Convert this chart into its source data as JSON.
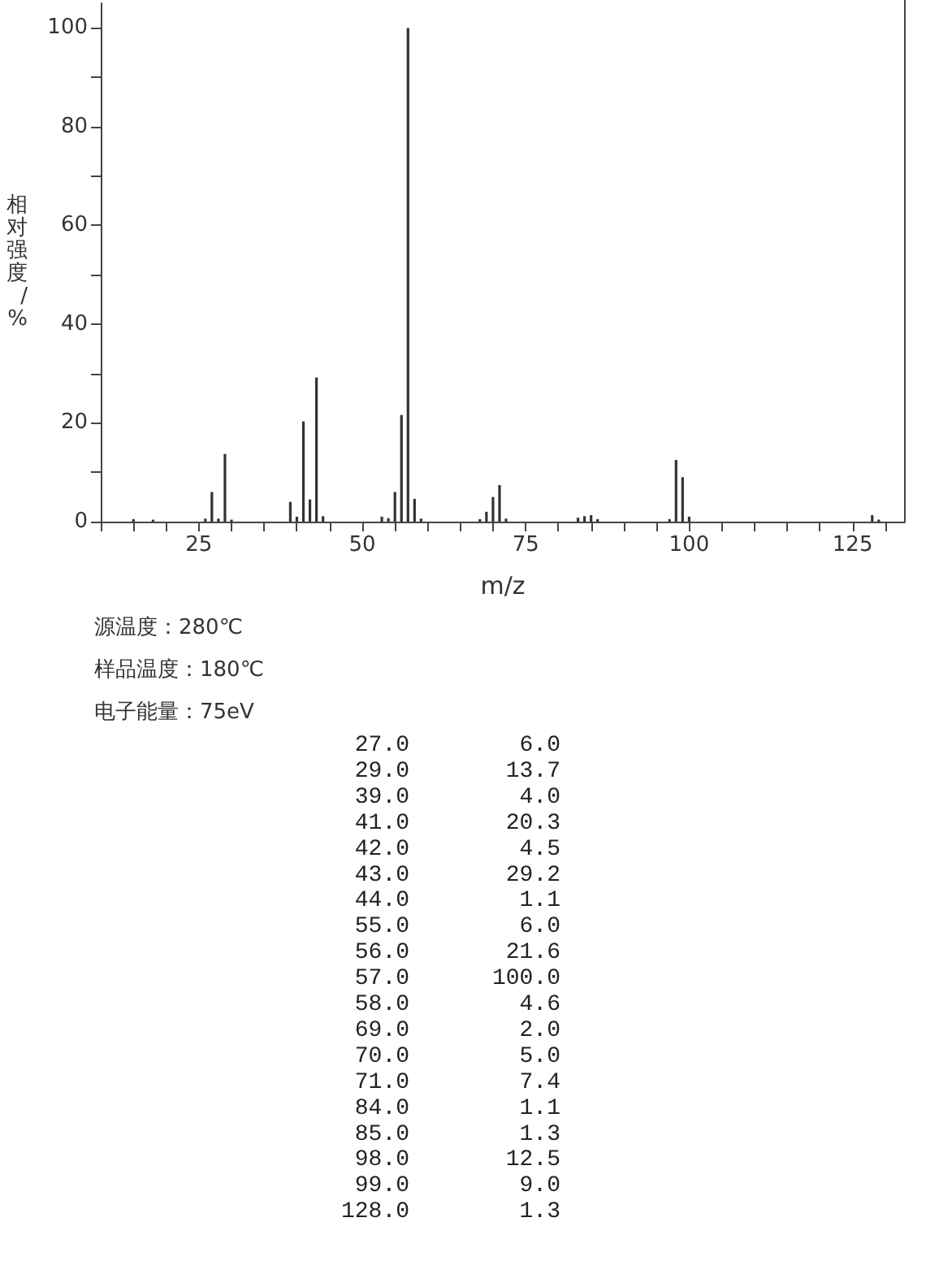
{
  "chart_data": [
    {
      "type": "bar",
      "xlabel": "m/z",
      "ylabel": "相对强度/%",
      "xlim": [
        10,
        133
      ],
      "ylim": [
        0,
        105
      ],
      "xticks": [
        {
          "value": 10,
          "label": null
        },
        {
          "value": 15,
          "label": null
        },
        {
          "value": 20,
          "label": null
        },
        25,
        {
          "value": 30,
          "label": null
        },
        {
          "value": 35,
          "label": null
        },
        {
          "value": 40,
          "label": null
        },
        {
          "value": 45,
          "label": null
        },
        50,
        {
          "value": 55,
          "label": null
        },
        {
          "value": 60,
          "label": null
        },
        {
          "value": 65,
          "label": null
        },
        {
          "value": 70,
          "label": null
        },
        75,
        {
          "value": 80,
          "label": null
        },
        {
          "value": 85,
          "label": null
        },
        {
          "value": 90,
          "label": null
        },
        {
          "value": 95,
          "label": null
        },
        100,
        {
          "value": 105,
          "label": null
        },
        {
          "value": 110,
          "label": null
        },
        {
          "value": 115,
          "label": null
        },
        {
          "value": 120,
          "label": null
        },
        125,
        {
          "value": 130,
          "label": null
        }
      ],
      "yticks": [
        0,
        {
          "value": 10,
          "label": null
        },
        20,
        {
          "value": 30,
          "label": null
        },
        40,
        {
          "value": 50,
          "label": null
        },
        60,
        {
          "value": 70,
          "label": null
        },
        80,
        {
          "value": 90,
          "label": null
        },
        100
      ],
      "series": [
        {
          "color": "#333333",
          "x": [
            15,
            18,
            26,
            27,
            28,
            29,
            30,
            39,
            40,
            41,
            42,
            43,
            44,
            53,
            54,
            55,
            56,
            57,
            58,
            59,
            68,
            69,
            70,
            71,
            72,
            83,
            84,
            85,
            86,
            97,
            98,
            99,
            100,
            128,
            129
          ],
          "values": [
            0.5,
            0.4,
            0.6,
            6.0,
            0.6,
            13.7,
            0.4,
            4.0,
            1.0,
            20.3,
            4.5,
            29.2,
            1.1,
            1.0,
            0.7,
            6.0,
            21.6,
            100.0,
            4.6,
            0.6,
            0.5,
            2.0,
            5.0,
            7.4,
            0.6,
            0.8,
            1.1,
            1.3,
            0.5,
            0.5,
            12.5,
            9.0,
            1.0,
            1.3,
            0.4
          ]
        }
      ],
      "annotations": [
        "源温度：280℃",
        "样品温度：180℃",
        "电子能量：75eV"
      ]
    },
    {
      "type": "other",
      "annotations": [
        "27.0 6.0",
        "29.0 13.7",
        "39.0 4.0",
        "41.0 20.3",
        "42.0 4.5",
        "43.0 29.2",
        "44.0 1.1",
        "55.0 6.0",
        "56.0 21.6",
        "57.0 100.0",
        "58.0 4.6",
        "69.0 2.0",
        "70.0 5.0",
        "71.0 7.4",
        "84.0 1.1",
        "85.0 1.3",
        "98.0 12.5",
        "99.0 9.0",
        "128.0 1.3"
      ]
    }
  ]
}
